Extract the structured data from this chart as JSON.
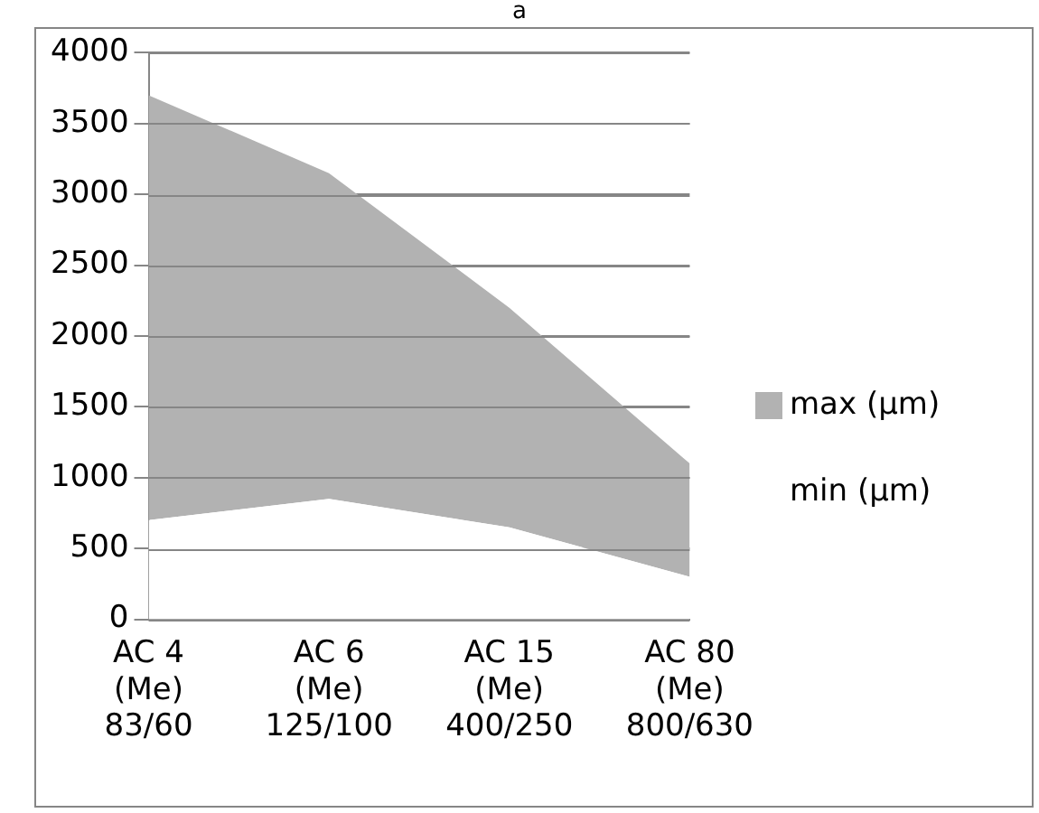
{
  "chart_data": {
    "type": "area",
    "title": "a",
    "stacked": true,
    "categories": [
      "AC 4\n(Me)\n83/60",
      "AC 6\n(Me)\n125/100",
      "AC 15\n(Me)\n400/250",
      "AC 80\n(Me)\n800/630"
    ],
    "series": [
      {
        "name": "min (µm)",
        "color": "#ffffff",
        "values": [
          700,
          850,
          650,
          300
        ]
      },
      {
        "name": "max (µm)",
        "color": "#b2b2b2",
        "values": [
          3000,
          2300,
          1550,
          800
        ]
      }
    ],
    "ylim": [
      0,
      4000
    ],
    "yticks": [
      0,
      500,
      1000,
      1500,
      2000,
      2500,
      3000,
      3500,
      4000
    ],
    "grid": "y",
    "legend": "right"
  }
}
